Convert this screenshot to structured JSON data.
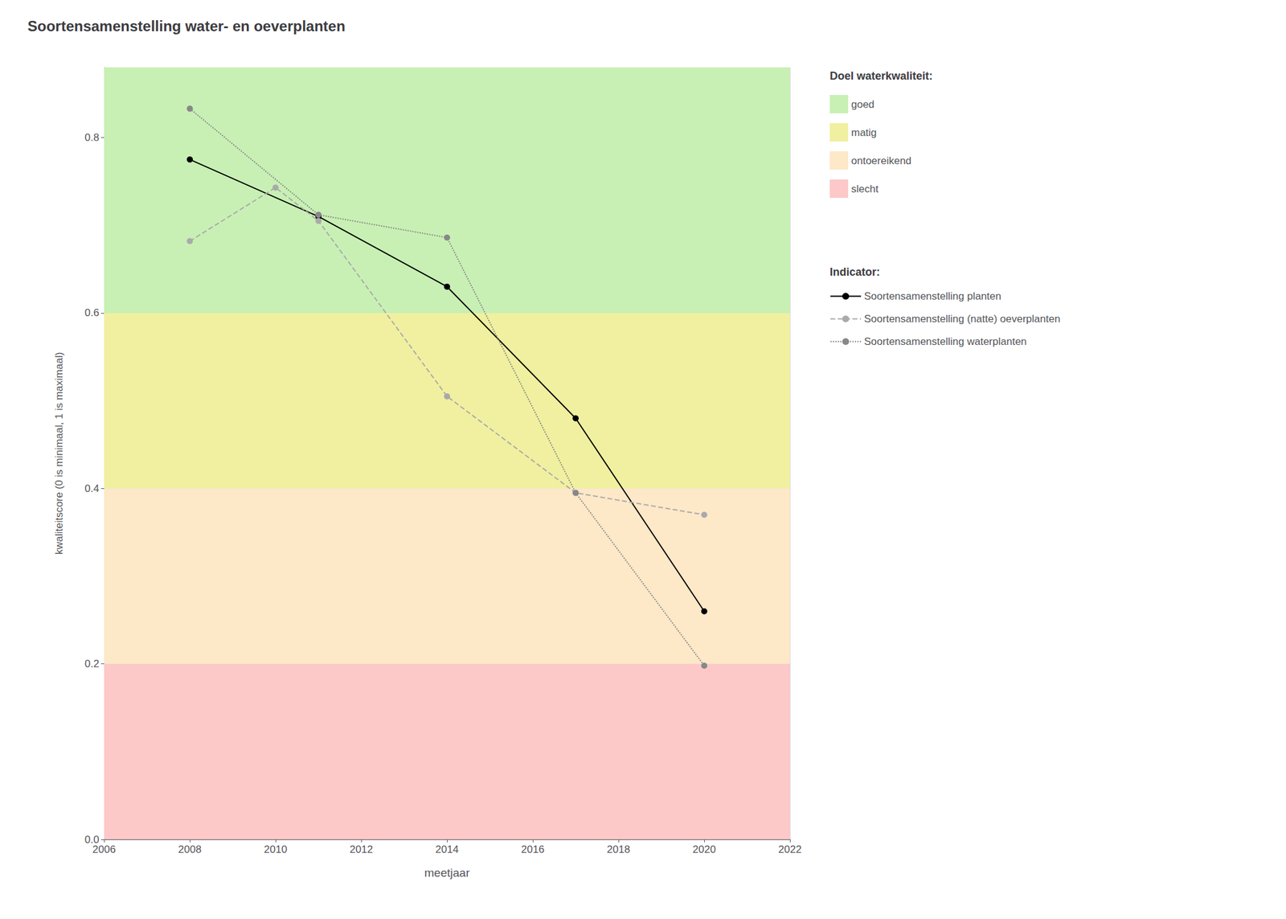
{
  "chart_data": {
    "type": "line",
    "title": "Soortensamenstelling water- en oeverplanten",
    "xlabel": "meetjaar",
    "ylabel": "kwaliteitscore (0 is minimaal, 1 is maximaal)",
    "xlim": [
      2006,
      2022
    ],
    "ylim": [
      0.0,
      0.88
    ],
    "xticks": [
      2006,
      2008,
      2010,
      2012,
      2014,
      2016,
      2018,
      2020,
      2022
    ],
    "yticks": [
      {
        "value": 0.0,
        "label": "0.0"
      },
      0.2,
      0.4,
      0.6,
      0.8
    ],
    "grid": true,
    "legend": "right",
    "series": [
      {
        "name": "Soortensamenstelling planten",
        "color": "#000000",
        "line_style": "solid",
        "marker": "circle",
        "x": [
          2008,
          2011,
          2014,
          2017,
          2020
        ],
        "values": [
          0.775,
          0.71,
          0.63,
          0.48,
          0.26
        ]
      },
      {
        "name": "Soortensamenstelling (natte) oeverplanten",
        "color": "#aaaaaa",
        "line_style": "dashed",
        "marker": "circle",
        "x": [
          2008,
          2010,
          2011,
          2014,
          2017,
          2020
        ],
        "values": [
          0.682,
          0.743,
          0.705,
          0.505,
          0.395,
          0.37
        ]
      },
      {
        "name": "Soortensamenstelling waterplanten",
        "color": "#888888",
        "line_style": "dotted",
        "marker": "circle",
        "x": [
          2008,
          2011,
          2014,
          2017,
          2020
        ],
        "values": [
          0.833,
          0.712,
          0.686,
          0.395,
          0.198
        ]
      }
    ],
    "series_legend_title": "Indicator:",
    "bands": {
      "title": "Doel waterkwaliteit:",
      "items": [
        {
          "name": "goed",
          "from": 0.6,
          "to": 0.88,
          "color": "#c8f0b4"
        },
        {
          "name": "matig",
          "from": 0.4,
          "to": 0.6,
          "color": "#f0f0a0"
        },
        {
          "name": "ontoereikend",
          "from": 0.2,
          "to": 0.4,
          "color": "#fde8c8"
        },
        {
          "name": "slecht",
          "from": 0.0,
          "to": 0.2,
          "color": "#fcc8c8"
        }
      ]
    }
  }
}
